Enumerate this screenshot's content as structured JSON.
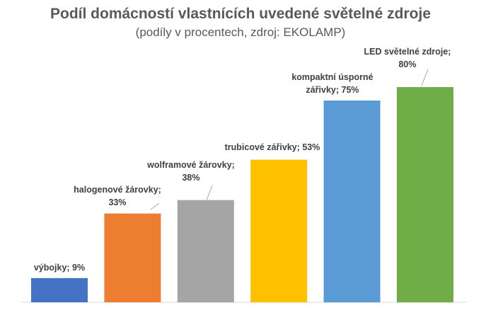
{
  "chart_data": {
    "type": "bar",
    "title": "Podíl domácností vlastnících uvedené světelné zdroje",
    "subtitle": "(podíly v procentech, zdroj: EKOLAMP)",
    "categories": [
      "výbojky",
      "halogenové žárovky",
      "wolframové žárovky",
      "trubicové zářivky",
      "kompaktní úsporné zářivky",
      "LED světelné zdroje"
    ],
    "values": [
      9,
      33,
      38,
      53,
      75,
      80
    ],
    "value_suffix": "%",
    "colors": [
      "#4472C4",
      "#ED7D31",
      "#A5A5A5",
      "#FFC000",
      "#5B9BD5",
      "#70AD47"
    ],
    "label_lines": [
      [
        "výbojky; 9%"
      ],
      [
        "halogenové žárovky;",
        "33%"
      ],
      [
        "wolframové žárovky;",
        "38%"
      ],
      [
        "trubicové zářivky; 53%"
      ],
      [
        "kompaktní úsporné",
        "zářivky; 75%"
      ],
      [
        "LED světelné zdroje;",
        "80%"
      ]
    ],
    "ylim": [
      0,
      90
    ],
    "grid": false,
    "legend": false
  }
}
